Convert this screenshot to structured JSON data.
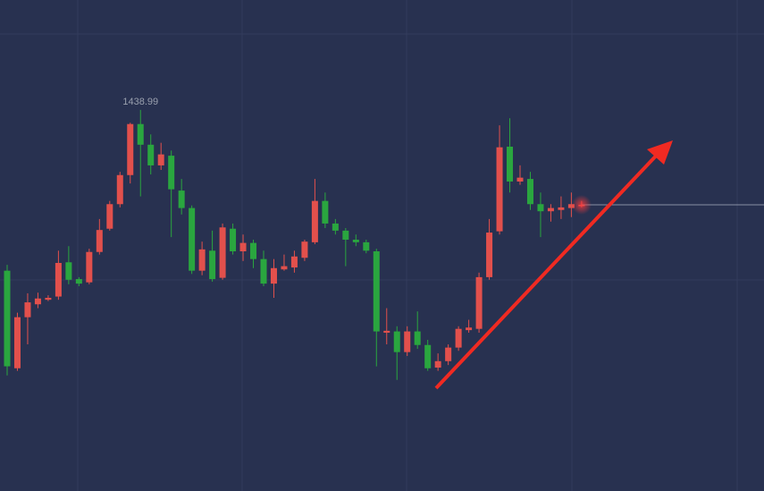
{
  "chart_data": {
    "type": "candlestick",
    "up_color": "#e2504c",
    "down_color": "#2aa63f",
    "ylim": [
      1380,
      1456
    ],
    "open": [
      1414.1,
      1399.0,
      1406.9,
      1408.9,
      1409.6,
      1410.1,
      1415.4,
      1412.8,
      1412.3,
      1417.0,
      1420.6,
      1424.4,
      1428.9,
      1436.8,
      1433.6,
      1430.4,
      1431.9,
      1426.5,
      1423.8,
      1414.1,
      1417.2,
      1413.0,
      1420.6,
      1417.1,
      1418.4,
      1415.9,
      1412.1,
      1414.3,
      1414.6,
      1416.1,
      1418.5,
      1424.9,
      1421.4,
      1420.3,
      1418.9,
      1418.5,
      1417.1,
      1404.5,
      1404.7,
      1401.5,
      1404.7,
      1402.6,
      1399.1,
      1400.1,
      1402.2,
      1404.9,
      1405.1,
      1413.1,
      1420.2,
      1433.3,
      1427.9,
      1428.3,
      1424.4,
      1423.3,
      1423.5,
      1423.8,
      1424.2
    ],
    "high": [
      1415.0,
      1407.6,
      1410.6,
      1410.7,
      1410.3,
      1417.2,
      1417.9,
      1413.1,
      1417.5,
      1422.1,
      1424.9,
      1429.4,
      1437.0,
      1438.99,
      1435.2,
      1433.9,
      1432.7,
      1428.3,
      1424.2,
      1418.6,
      1420.3,
      1421.4,
      1421.4,
      1419.7,
      1418.9,
      1417.2,
      1415.9,
      1416.6,
      1417.2,
      1418.9,
      1428.3,
      1426.2,
      1422.1,
      1420.7,
      1419.7,
      1418.9,
      1417.5,
      1408.3,
      1405.5,
      1405.5,
      1407.8,
      1403.4,
      1401.3,
      1402.7,
      1405.5,
      1406.5,
      1413.8,
      1422.1,
      1436.6,
      1437.7,
      1430.4,
      1429.4,
      1426.2,
      1424.4,
      1425.6,
      1426.2,
      1424.9
    ],
    "low": [
      1397.9,
      1398.6,
      1402.7,
      1408.3,
      1409.4,
      1409.6,
      1412.0,
      1411.7,
      1412.0,
      1416.6,
      1420.3,
      1423.9,
      1427.6,
      1425.6,
      1429.0,
      1429.7,
      1419.3,
      1422.8,
      1413.6,
      1413.4,
      1412.4,
      1412.7,
      1416.6,
      1415.6,
      1414.5,
      1411.7,
      1409.9,
      1414.1,
      1413.8,
      1415.6,
      1418.2,
      1420.7,
      1419.7,
      1414.8,
      1417.9,
      1416.8,
      1399.3,
      1402.7,
      1397.2,
      1400.9,
      1402.0,
      1398.6,
      1398.6,
      1399.5,
      1401.7,
      1404.5,
      1404.5,
      1412.7,
      1419.7,
      1426.2,
      1427.4,
      1423.5,
      1419.3,
      1421.7,
      1422.1,
      1422.4,
      1423.9
    ],
    "close": [
      1399.3,
      1406.9,
      1409.2,
      1409.8,
      1409.9,
      1415.3,
      1412.7,
      1412.1,
      1417.0,
      1420.4,
      1424.4,
      1428.9,
      1436.8,
      1433.6,
      1430.4,
      1432.1,
      1426.7,
      1423.8,
      1414.1,
      1417.4,
      1412.8,
      1420.8,
      1417.1,
      1418.4,
      1415.9,
      1412.1,
      1414.5,
      1414.8,
      1416.3,
      1418.6,
      1424.9,
      1421.4,
      1420.3,
      1418.9,
      1418.5,
      1417.2,
      1404.7,
      1404.8,
      1401.5,
      1404.7,
      1402.6,
      1399.0,
      1400.1,
      1402.2,
      1405.1,
      1405.3,
      1413.1,
      1420.0,
      1433.2,
      1427.9,
      1428.5,
      1424.4,
      1423.3,
      1423.8,
      1423.9,
      1424.4,
      1424.3
    ]
  }
}
